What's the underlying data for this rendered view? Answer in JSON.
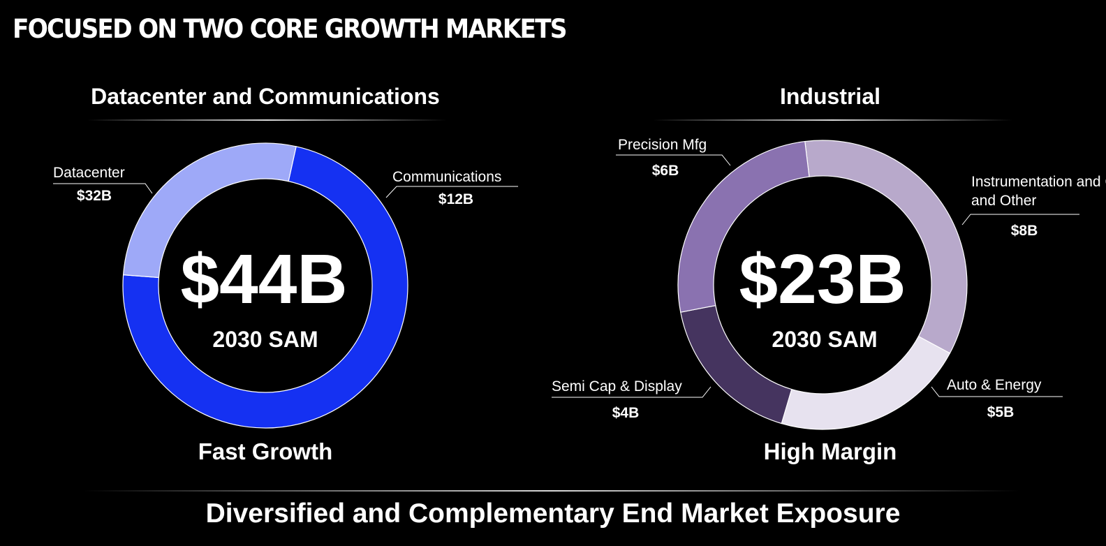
{
  "page_title": "FOCUSED ON TWO CORE GROWTH MARKETS",
  "footer_title": "Diversified and Complementary End Market Exposure",
  "chart_data": [
    {
      "type": "pie",
      "title": "Datacenter and Communications",
      "center_value": "$44B",
      "center_label": "2030 SAM",
      "caption": "Fast Growth",
      "slices": [
        {
          "label": "Datacenter",
          "value_label": "$32B",
          "value": 32,
          "color": "#1531F2"
        },
        {
          "label": "Communications",
          "value_label": "$12B",
          "value": 12,
          "color": "#9EA9F8"
        }
      ]
    },
    {
      "type": "pie",
      "title": "Industrial",
      "center_value": "$23B",
      "center_label": "2030 SAM",
      "caption": "High Margin",
      "slices": [
        {
          "label": "Instrumentation and Other",
          "value_label": "$8B",
          "value": 8,
          "color": "#B8A9CB"
        },
        {
          "label": "Auto & Energy",
          "value_label": "$5B",
          "value": 5,
          "color": "#E7E2EF"
        },
        {
          "label": "Semi Cap & Display",
          "value_label": "$4B",
          "value": 4,
          "color": "#45345F"
        },
        {
          "label": "Precision Mfg",
          "value_label": "$6B",
          "value": 6,
          "color": "#8A72B0"
        }
      ]
    }
  ]
}
